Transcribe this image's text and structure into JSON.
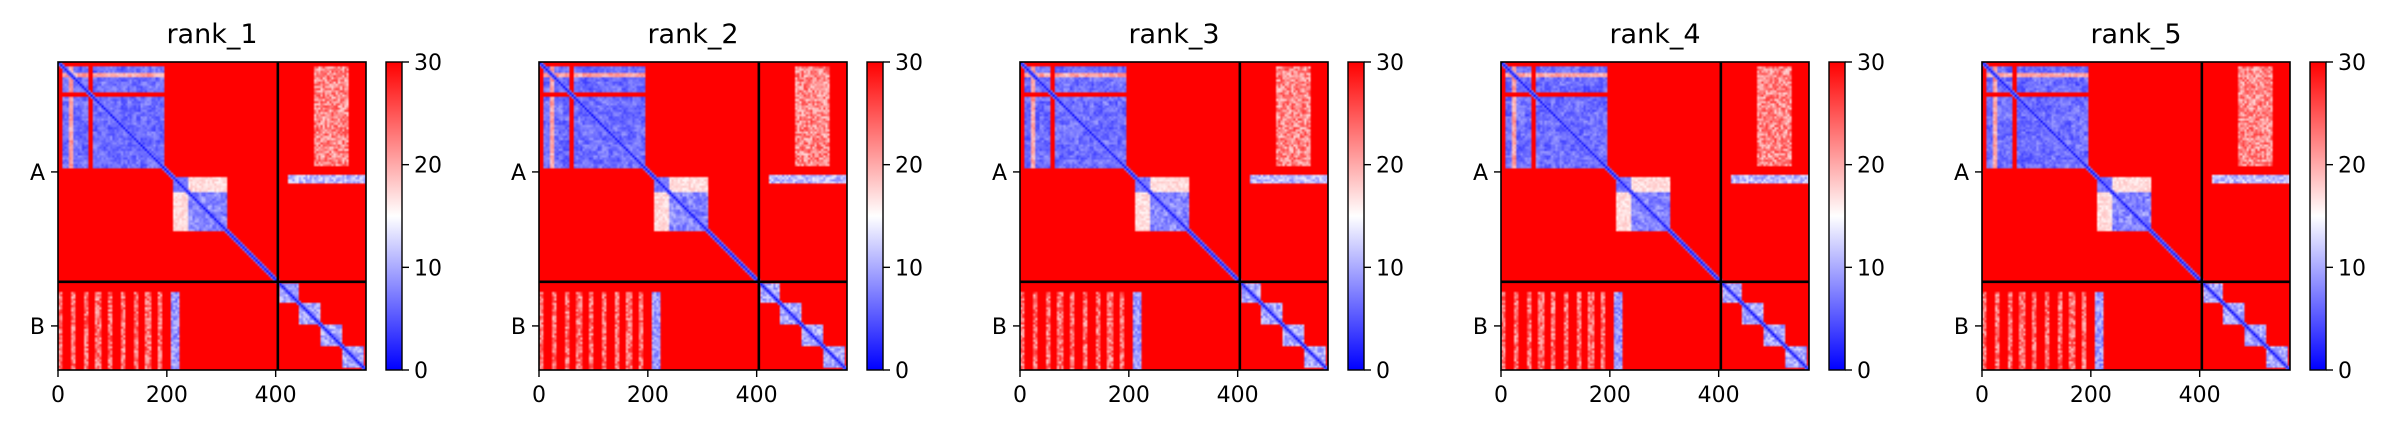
{
  "figure": {
    "background": "#ffffff"
  },
  "chart_data": [
    {
      "type": "heatmap",
      "title": "rank_1",
      "xlabel": "",
      "ylabel": "",
      "x_ticks": [
        0,
        200,
        400
      ],
      "x_tick_labels": [
        "0",
        "200",
        "400"
      ],
      "y_tick_labels": [
        "A",
        "B"
      ],
      "xlim": [
        0,
        566
      ],
      "ylim": [
        566,
        0
      ],
      "chain_lengths": [
        404,
        162
      ],
      "chain_labels": [
        "A",
        "B"
      ],
      "colorbar": {
        "range": [
          0,
          30
        ],
        "ticks": [
          0,
          10,
          20,
          30
        ],
        "tick_labels": [
          "0",
          "10",
          "20",
          "30"
        ],
        "colors": [
          "#0000ff",
          "#ffffff",
          "#ff0000"
        ]
      },
      "grid": false,
      "legend": "none"
    },
    {
      "type": "heatmap",
      "title": "rank_2",
      "xlabel": "",
      "ylabel": "",
      "x_ticks": [
        0,
        200,
        400
      ],
      "x_tick_labels": [
        "0",
        "200",
        "400"
      ],
      "y_tick_labels": [
        "A",
        "B"
      ],
      "xlim": [
        0,
        566
      ],
      "ylim": [
        566,
        0
      ],
      "chain_lengths": [
        404,
        162
      ],
      "chain_labels": [
        "A",
        "B"
      ],
      "colorbar": {
        "range": [
          0,
          30
        ],
        "ticks": [
          0,
          10,
          20,
          30
        ],
        "tick_labels": [
          "0",
          "10",
          "20",
          "30"
        ],
        "colors": [
          "#0000ff",
          "#ffffff",
          "#ff0000"
        ]
      },
      "grid": false,
      "legend": "none"
    },
    {
      "type": "heatmap",
      "title": "rank_3",
      "xlabel": "",
      "ylabel": "",
      "x_ticks": [
        0,
        200,
        400
      ],
      "x_tick_labels": [
        "0",
        "200",
        "400"
      ],
      "y_tick_labels": [
        "A",
        "B"
      ],
      "xlim": [
        0,
        566
      ],
      "ylim": [
        566,
        0
      ],
      "chain_lengths": [
        404,
        162
      ],
      "chain_labels": [
        "A",
        "B"
      ],
      "colorbar": {
        "range": [
          0,
          30
        ],
        "ticks": [
          0,
          10,
          20,
          30
        ],
        "tick_labels": [
          "0",
          "10",
          "20",
          "30"
        ],
        "colors": [
          "#0000ff",
          "#ffffff",
          "#ff0000"
        ]
      },
      "grid": false,
      "legend": "none"
    },
    {
      "type": "heatmap",
      "title": "rank_4",
      "xlabel": "",
      "ylabel": "",
      "x_ticks": [
        0,
        200,
        400
      ],
      "x_tick_labels": [
        "0",
        "200",
        "400"
      ],
      "y_tick_labels": [
        "A",
        "B"
      ],
      "xlim": [
        0,
        566
      ],
      "ylim": [
        566,
        0
      ],
      "chain_lengths": [
        404,
        162
      ],
      "chain_labels": [
        "A",
        "B"
      ],
      "colorbar": {
        "range": [
          0,
          30
        ],
        "ticks": [
          0,
          10,
          20,
          30
        ],
        "tick_labels": [
          "0",
          "10",
          "20",
          "30"
        ],
        "colors": [
          "#0000ff",
          "#ffffff",
          "#ff0000"
        ]
      },
      "grid": false,
      "legend": "none"
    },
    {
      "type": "heatmap",
      "title": "rank_5",
      "xlabel": "",
      "ylabel": "",
      "x_ticks": [
        0,
        200,
        400
      ],
      "x_tick_labels": [
        "0",
        "200",
        "400"
      ],
      "y_tick_labels": [
        "A",
        "B"
      ],
      "xlim": [
        0,
        566
      ],
      "ylim": [
        566,
        0
      ],
      "chain_lengths": [
        404,
        162
      ],
      "chain_labels": [
        "A",
        "B"
      ],
      "colorbar": {
        "range": [
          0,
          30
        ],
        "ticks": [
          0,
          10,
          20,
          30
        ],
        "tick_labels": [
          "0",
          "10",
          "20",
          "30"
        ],
        "colors": [
          "#0000ff",
          "#ffffff",
          "#ff0000"
        ]
      },
      "grid": false,
      "legend": "none"
    }
  ]
}
